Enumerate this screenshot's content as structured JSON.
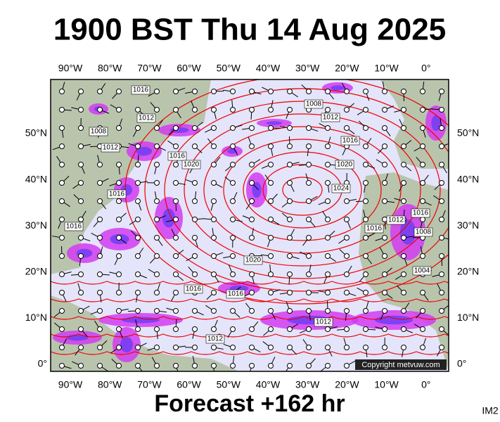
{
  "title": "1900 BST Thu 14 Aug 2025",
  "longitude_labels": [
    "90°W",
    "80°W",
    "70°W",
    "60°W",
    "50°W",
    "40°W",
    "30°W",
    "20°W",
    "10°W",
    "0°"
  ],
  "latitude_labels": [
    "50°N",
    "40°N",
    "30°N",
    "20°N",
    "10°N",
    "0°"
  ],
  "isobar_labels": [
    "1016",
    "1012",
    "1008",
    "1012",
    "1016",
    "1020",
    "1016",
    "1016",
    "1008",
    "1012",
    "1016",
    "1020",
    "1024",
    "1016",
    "1012",
    "1016",
    "1008",
    "1004",
    "1020",
    "1016",
    "1016",
    "1012",
    "1012"
  ],
  "copyright": "Copyright metvuw.com",
  "footer": "Forecast +162 hr",
  "corner_label": "IM2"
}
